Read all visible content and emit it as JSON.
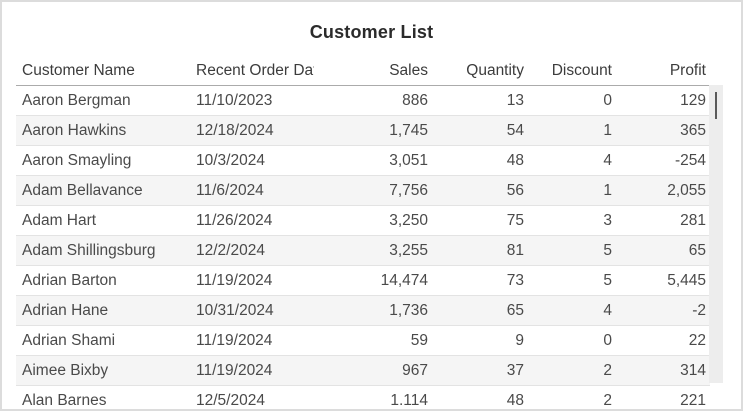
{
  "title": "Customer List",
  "table": {
    "columns": [
      {
        "label": "Customer Name",
        "align": "left"
      },
      {
        "label": "Recent Order Date",
        "align": "left"
      },
      {
        "label": "Sales",
        "align": "right"
      },
      {
        "label": "Quantity",
        "align": "right"
      },
      {
        "label": "Discount",
        "align": "right"
      },
      {
        "label": "Profit",
        "align": "right"
      }
    ],
    "rows": [
      [
        "Aaron Bergman",
        "11/10/2023",
        "886",
        "13",
        "0",
        "129"
      ],
      [
        "Aaron Hawkins",
        "12/18/2024",
        "1,745",
        "54",
        "1",
        "365"
      ],
      [
        "Aaron Smayling",
        "10/3/2024",
        "3,051",
        "48",
        "4",
        "-254"
      ],
      [
        "Adam Bellavance",
        "11/6/2024",
        "7,756",
        "56",
        "1",
        "2,055"
      ],
      [
        "Adam Hart",
        "11/26/2024",
        "3,250",
        "75",
        "3",
        "281"
      ],
      [
        "Adam Shillingsburg",
        "12/2/2024",
        "3,255",
        "81",
        "5",
        "65"
      ],
      [
        "Adrian Barton",
        "11/19/2024",
        "14,474",
        "73",
        "5",
        "5,445"
      ],
      [
        "Adrian Hane",
        "10/31/2024",
        "1,736",
        "65",
        "4",
        "-2"
      ],
      [
        "Adrian Shami",
        "11/19/2024",
        "59",
        "9",
        "0",
        "22"
      ],
      [
        "Aimee Bixby",
        "11/19/2024",
        "967",
        "37",
        "2",
        "314"
      ],
      [
        "Alan Barnes",
        "12/5/2024",
        "1,114",
        "48",
        "2",
        "221"
      ]
    ]
  },
  "scrollbar": {
    "orientation": "vertical",
    "thumb_position": "top"
  },
  "colors": {
    "title_text": "#2b2b2b",
    "header_text": "#3c3c3c",
    "cell_text": "#4a4a4a",
    "stripe_row": "#f5f5f5",
    "row_border": "#e3e3e3",
    "header_border": "#ababab",
    "window_border": "#dcdcdc",
    "scroll_track": "#ededed",
    "scroll_thumb": "#5a5a5a"
  },
  "chart_data": {
    "type": "table",
    "title": "Customer List",
    "columns": [
      "Customer Name",
      "Recent Order Date",
      "Sales",
      "Quantity",
      "Discount",
      "Profit"
    ],
    "rows": [
      [
        "Aaron Bergman",
        "11/10/2023",
        886,
        13,
        0,
        129
      ],
      [
        "Aaron Hawkins",
        "12/18/2024",
        1745,
        54,
        1,
        365
      ],
      [
        "Aaron Smayling",
        "10/3/2024",
        3051,
        48,
        4,
        -254
      ],
      [
        "Adam Bellavance",
        "11/6/2024",
        7756,
        56,
        1,
        2055
      ],
      [
        "Adam Hart",
        "11/26/2024",
        3250,
        75,
        3,
        281
      ],
      [
        "Adam Shillingsburg",
        "12/2/2024",
        3255,
        81,
        5,
        65
      ],
      [
        "Adrian Barton",
        "11/19/2024",
        14474,
        73,
        5,
        5445
      ],
      [
        "Adrian Hane",
        "10/31/2024",
        1736,
        65,
        4,
        -2
      ],
      [
        "Adrian Shami",
        "11/19/2024",
        59,
        9,
        0,
        22
      ],
      [
        "Aimee Bixby",
        "11/19/2024",
        967,
        37,
        2,
        314
      ],
      [
        "Alan Barnes",
        "12/5/2024",
        1114,
        48,
        2,
        221
      ]
    ]
  }
}
